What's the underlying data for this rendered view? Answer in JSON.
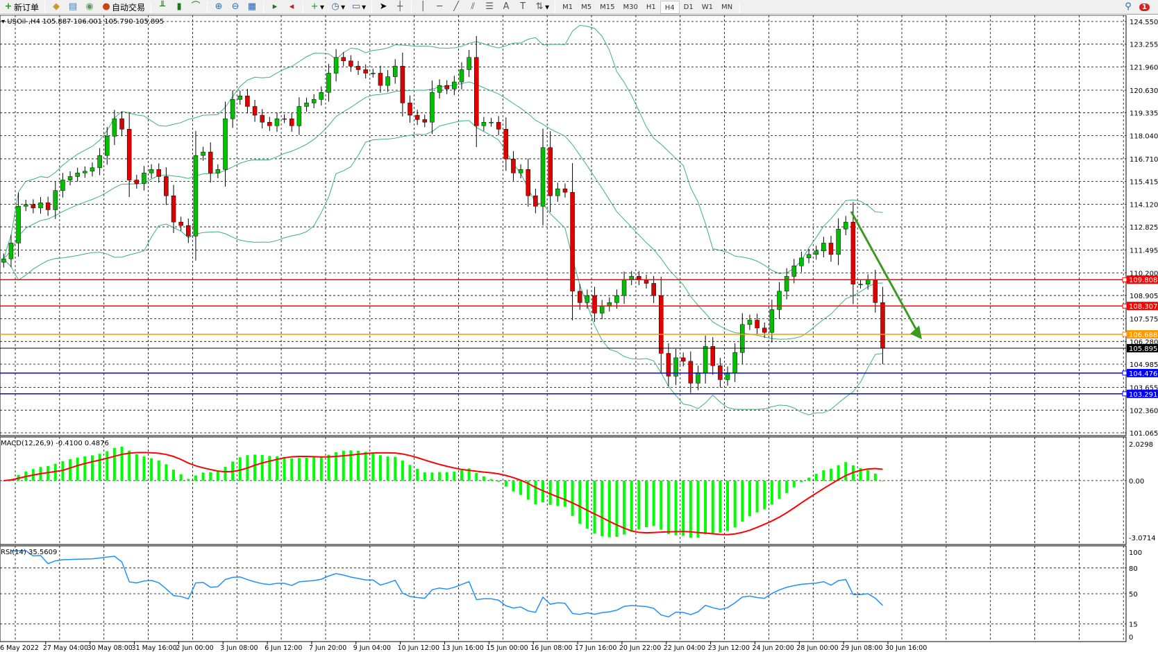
{
  "toolbar": {
    "new_order": "新订单",
    "auto_trading": "自动交易",
    "timeframes": [
      "M1",
      "M5",
      "M15",
      "M30",
      "H1",
      "H4",
      "D1",
      "W1",
      "MN"
    ],
    "active_timeframe": "H4",
    "notification_count": "1"
  },
  "chart_data": {
    "type": "candlestick",
    "symbol_header": "USOil-,H4  105.887 106.001 105.790 105.895",
    "price_ticks": [
      "124.550",
      "123.255",
      "121.960",
      "120.630",
      "119.335",
      "118.040",
      "116.710",
      "115.415",
      "114.120",
      "112.825",
      "111.495",
      "110.200",
      "108.905",
      "107.575",
      "106.280",
      "104.985",
      "103.655",
      "102.360",
      "101.065"
    ],
    "ylim": [
      101.065,
      124.55
    ],
    "close": [
      111.0,
      111.9,
      114.0,
      114.1,
      113.9,
      114.2,
      113.8,
      114.9,
      115.5,
      115.7,
      115.9,
      116.0,
      116.2,
      116.9,
      118.0,
      119.0,
      118.4,
      115.5,
      115.3,
      115.9,
      116.1,
      115.7,
      114.6,
      113.1,
      112.9,
      112.3,
      116.9,
      117.1,
      115.9,
      116.1,
      119.0,
      120.1,
      120.3,
      119.7,
      119.2,
      118.8,
      118.6,
      119.0,
      119.0,
      118.6,
      119.7,
      119.9,
      120.1,
      120.5,
      121.6,
      122.5,
      122.3,
      122.0,
      121.8,
      121.6,
      121.6,
      120.9,
      121.4,
      122.0,
      119.9,
      119.2,
      118.95,
      118.8,
      120.5,
      120.9,
      120.7,
      121.1,
      121.8,
      122.5,
      118.6,
      118.8,
      118.8,
      118.4,
      116.7,
      115.9,
      116.1,
      114.6,
      114.0,
      117.35,
      114.6,
      115.0,
      114.8,
      109.15,
      108.5,
      108.9,
      107.9,
      108.3,
      108.5,
      108.9,
      109.8,
      110.0,
      109.8,
      109.6,
      108.9,
      105.6,
      104.3,
      105.35,
      105.15,
      103.9,
      104.5,
      106.0,
      104.9,
      104.1,
      104.5,
      105.65,
      107.25,
      107.5,
      107.05,
      106.8,
      108.1,
      109.15,
      110.0,
      110.6,
      111.05,
      111.25,
      111.45,
      111.9,
      111.25,
      112.7,
      113.1,
      109.55,
      109.55,
      109.8,
      108.5,
      105.895
    ],
    "date_labels": [
      "26 May 2022",
      "27 May 04:00",
      "30 May 08:00",
      "31 May 16:00",
      "2 Jun 00:00",
      "3 Jun 08:00",
      "6 Jun 12:00",
      "7 Jun 20:00",
      "9 Jun 04:00",
      "10 Jun 12:00",
      "13 Jun 16:00",
      "15 Jun 00:00",
      "16 Jun 08:00",
      "17 Jun 16:00",
      "20 Jun 22:00",
      "22 Jun 04:00",
      "23 Jun 12:00",
      "24 Jun 20:00",
      "28 Jun 00:00",
      "29 Jun 08:00",
      "30 Jun 16:00"
    ],
    "current_price": {
      "value": 105.895,
      "label": "105.895",
      "color": "#000000"
    },
    "levels": [
      {
        "value": 109.808,
        "label": "109.808",
        "color": "#ff0000"
      },
      {
        "value": 108.307,
        "label": "108.307",
        "color": "#ff0000"
      },
      {
        "value": 106.688,
        "label": "106.688",
        "color": "#ff9900"
      },
      {
        "value": 104.476,
        "label": "104.476",
        "color": "#0000ff"
      },
      {
        "value": 103.291,
        "label": "103.291",
        "color": "#0000ff"
      }
    ],
    "arrow": {
      "from_price": 113.7,
      "to_price": 106.4,
      "color": "#3a9a22"
    },
    "bollinger": {
      "period": 20,
      "color": "#3cb371"
    },
    "candle_colors": {
      "up": "#00c000",
      "down": "#e00000"
    },
    "macd": {
      "label": "MACD(12,26,9) -0.4100 0.4876",
      "ticks": [
        "2.0298",
        "0.00",
        "-3.0714"
      ],
      "ylim": [
        -3.0714,
        2.0298
      ],
      "hist_color": "#00ff00",
      "signal_color": "#ff0000"
    },
    "rsi": {
      "label": "RSI(14) 35.5609",
      "ticks": [
        "100",
        "80",
        "50",
        "15",
        "0"
      ],
      "ylim": [
        0,
        100
      ],
      "color": "#1e90ff"
    }
  }
}
